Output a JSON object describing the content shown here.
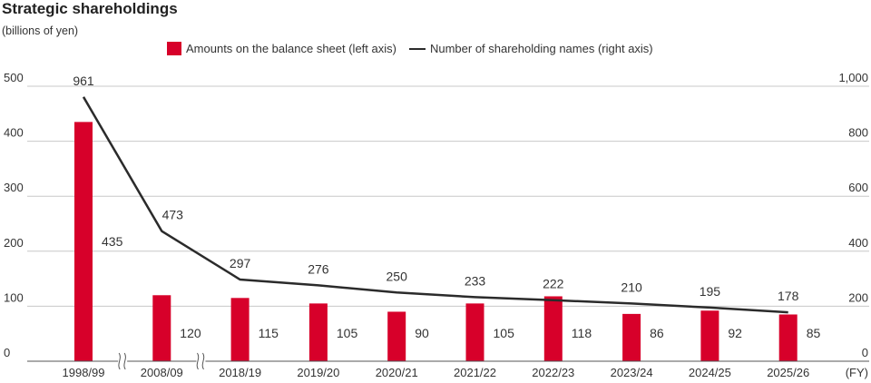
{
  "chart_data": {
    "type": "bar",
    "title": "Strategic shareholdings",
    "unit_label": "(billions of yen)",
    "x_unit": "(FY)",
    "categories": [
      "1998/99",
      "2008/09",
      "2018/19",
      "2019/20",
      "2020/21",
      "2021/22",
      "2022/23",
      "2023/24",
      "2024/25",
      "2025/26"
    ],
    "series": [
      {
        "name": "Amounts on the balance sheet (left axis)",
        "type": "bar",
        "axis": "left",
        "color": "#d7002a",
        "values": [
          435,
          120,
          115,
          105,
          90,
          105,
          118,
          86,
          92,
          85
        ]
      },
      {
        "name": "Number of shareholding names (right axis)",
        "type": "line",
        "axis": "right",
        "color": "#2b2b2b",
        "values": [
          961,
          473,
          297,
          276,
          250,
          233,
          222,
          210,
          195,
          178
        ]
      }
    ],
    "left_axis": {
      "range": [
        0,
        500
      ],
      "ticks": [
        "0",
        "100",
        "200",
        "300",
        "400",
        "500"
      ]
    },
    "right_axis": {
      "range": [
        0,
        1000
      ],
      "ticks": [
        "0",
        "200",
        "400",
        "600",
        "800",
        "1,000"
      ]
    },
    "axis_breaks_after": [
      "1998/99",
      "2008/09"
    ],
    "grid": true,
    "legend_position": "top"
  }
}
